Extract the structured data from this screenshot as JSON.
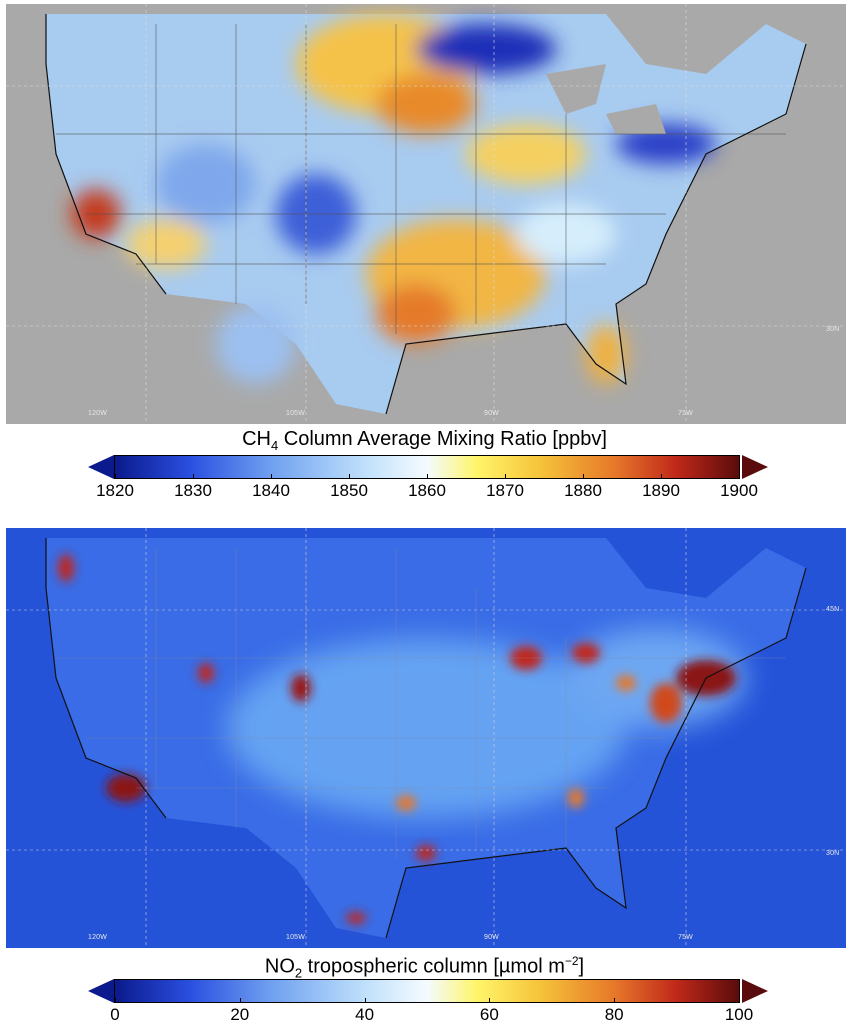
{
  "maps": [
    {
      "id": "ch4",
      "colorbar": {
        "title_main": "CH",
        "title_sub": "4",
        "title_rest": " Column Average Mixing Ratio [ppbv]",
        "ticks": [
          "1820",
          "1830",
          "1840",
          "1850",
          "1860",
          "1870",
          "1880",
          "1890",
          "1900"
        ],
        "min_color": "#0b1a8c",
        "max_color": "#5a0c0c"
      },
      "lon_labels": [
        "120W",
        "105W",
        "90W",
        "75W"
      ],
      "lat_labels": [
        "30N"
      ]
    },
    {
      "id": "no2",
      "colorbar": {
        "title_main": "NO",
        "title_sub": "2",
        "title_rest": " tropospheric column [µmol m",
        "title_sup": "−2",
        "title_end": "]",
        "ticks": [
          "0",
          "20",
          "40",
          "60",
          "80",
          "100"
        ],
        "min_color": "#0b1a8c",
        "max_color": "#5a0c0c"
      },
      "lon_labels": [
        "120W",
        "105W",
        "90W",
        "75W"
      ],
      "lat_labels": [
        "45N",
        "30N"
      ]
    }
  ]
}
